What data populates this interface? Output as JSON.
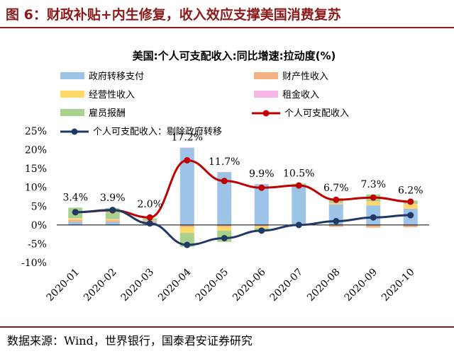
{
  "page": {
    "figure_title": "图 6：财政补贴+内生修复，收入效应支撑美国消费复苏",
    "source": "数据来源：Wind，世界银行，国泰君安证券研究"
  },
  "chart_data": {
    "type": "bar",
    "stacked": true,
    "title": "美国:个人可支配收入:同比增速:拉动度(%)",
    "categories": [
      "2020-01",
      "2020-02",
      "2020-03",
      "2020-04",
      "2020-05",
      "2020-06",
      "2020-07",
      "2020-08",
      "2020-09",
      "2020-10"
    ],
    "ylim": [
      -10,
      25
    ],
    "ytick_labels": [
      "25%",
      "20%",
      "15%",
      "10%",
      "5%",
      "0%",
      "-5%",
      "-10%"
    ],
    "ytick_values": [
      25,
      20,
      15,
      10,
      5,
      0,
      -5,
      -10
    ],
    "grid": false,
    "legend_position": "top",
    "bar_series": [
      {
        "name": "政府转移支付",
        "color": "#9dc3e6",
        "values": [
          0.8,
          0.8,
          0.8,
          20.5,
          14.0,
          10.8,
          10.3,
          5.5,
          5.2,
          4.3
        ]
      },
      {
        "name": "财产性收入",
        "color": "#f4b183",
        "values": [
          0.5,
          0.4,
          0.2,
          -0.6,
          -0.5,
          -0.4,
          -0.2,
          -0.5,
          -0.7,
          -0.6
        ]
      },
      {
        "name": "经营性收入",
        "color": "#ffd966",
        "values": [
          0.4,
          0.3,
          0.1,
          -1.5,
          -1.0,
          -0.4,
          0.2,
          0.3,
          1.0,
          1.2
        ]
      },
      {
        "name": "租金收入",
        "color": "#f7b6e6",
        "values": [
          0.1,
          0.1,
          0.05,
          0.1,
          0.1,
          0.1,
          0.1,
          0.1,
          0.1,
          0.1
        ]
      },
      {
        "name": "雇员报酬",
        "color": "#a9d18e",
        "values": [
          2.8,
          2.9,
          0.6,
          -3.7,
          -3.0,
          -0.9,
          0.4,
          1.2,
          1.8,
          0.9
        ]
      }
    ],
    "line_series": [
      {
        "name": "个人可支配收入",
        "color": "#c00000",
        "values": [
          3.4,
          3.9,
          2.0,
          17.2,
          11.7,
          9.9,
          10.5,
          6.7,
          7.3,
          6.2
        ]
      },
      {
        "name": "个人可支配收入：剔除政府转移",
        "color": "#1f3864",
        "values": [
          3.4,
          4.0,
          0.4,
          -5.3,
          -3.5,
          -1.5,
          0.0,
          1.0,
          2.0,
          2.6
        ]
      }
    ],
    "data_labels": [
      "3.4%",
      "3.9%",
      "2.0%",
      "17.2%",
      "11.7%",
      "9.9%",
      "10.5%",
      "6.7%",
      "7.3%",
      "6.2%"
    ]
  }
}
